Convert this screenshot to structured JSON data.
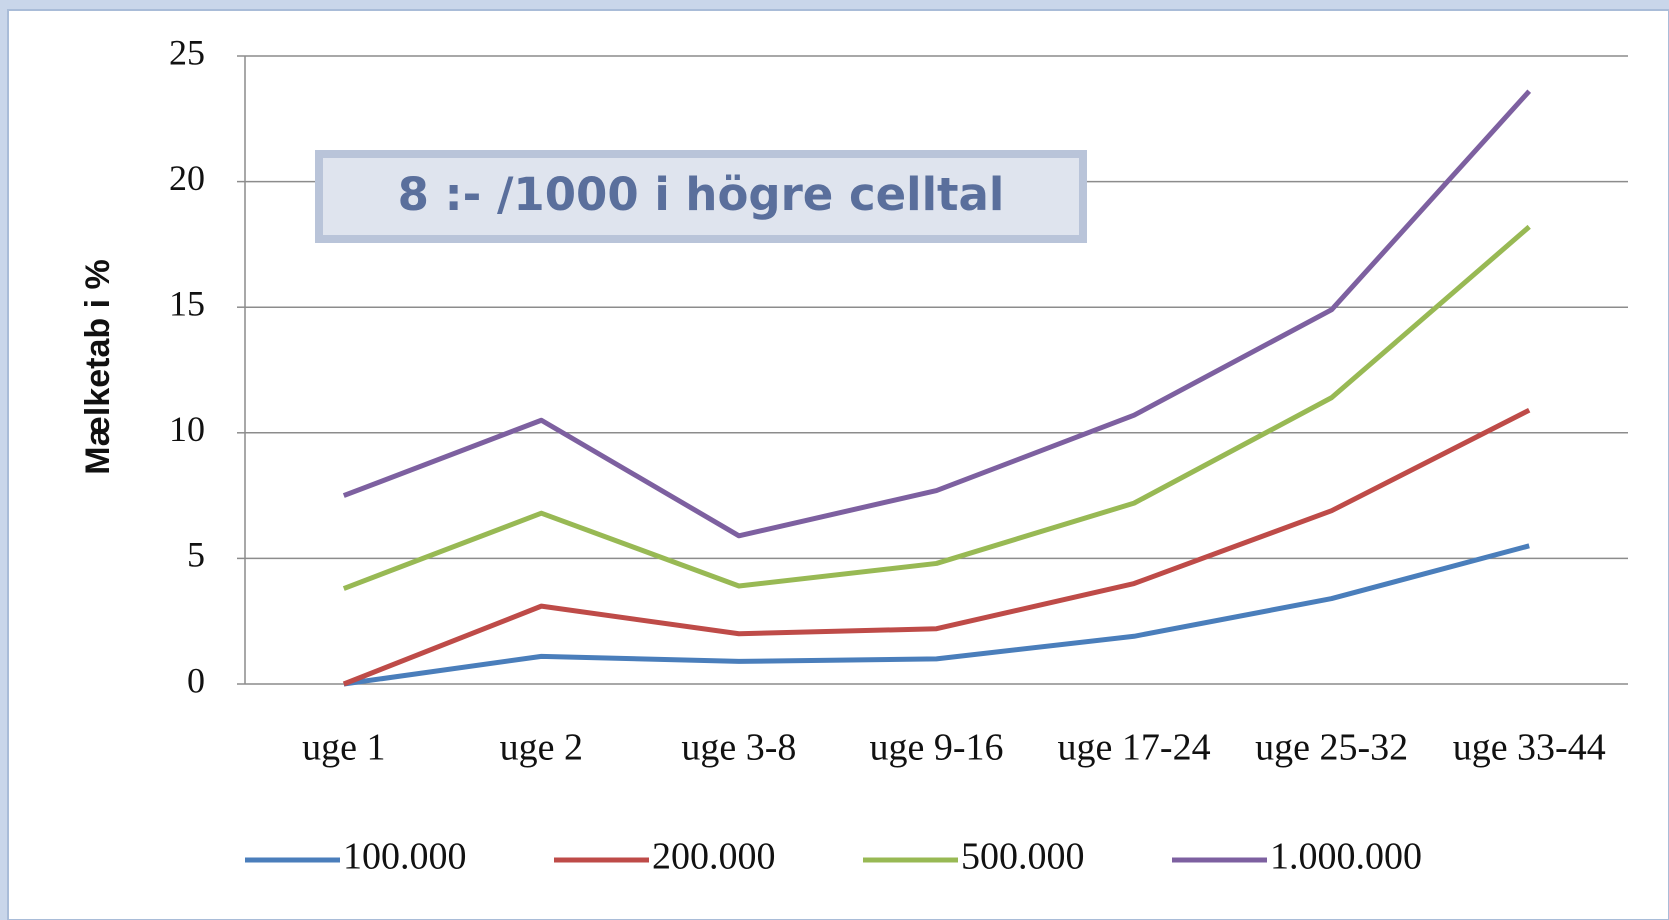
{
  "chart_data": {
    "type": "line",
    "annotation": "8 :- /1000 i högre celltal",
    "y_label": "Mælketab i %",
    "categories": [
      "uge 1",
      "uge 2",
      "uge 3-8",
      "uge 9-16",
      "uge 17-24",
      "uge 25-32",
      "uge 33-44"
    ],
    "series": [
      {
        "name": "100.000",
        "color": "#4a7ebb",
        "values": [
          0,
          1.1,
          0.9,
          1.0,
          1.9,
          3.4,
          5.5
        ]
      },
      {
        "name": "200.000",
        "color": "#be4b48",
        "values": [
          0,
          3.1,
          2.0,
          2.2,
          4.0,
          6.9,
          10.9
        ]
      },
      {
        "name": "500.000",
        "color": "#98b954",
        "values": [
          3.8,
          6.8,
          3.9,
          4.8,
          7.2,
          11.4,
          18.2
        ]
      },
      {
        "name": "1.000.000",
        "color": "#7d60a0",
        "values": [
          7.5,
          10.5,
          5.9,
          7.7,
          10.7,
          14.9,
          23.6
        ]
      }
    ],
    "ylim": [
      0,
      25
    ],
    "yticks": [
      0,
      5,
      10,
      15,
      20,
      25
    ],
    "grid": true,
    "legend": "bottom"
  }
}
